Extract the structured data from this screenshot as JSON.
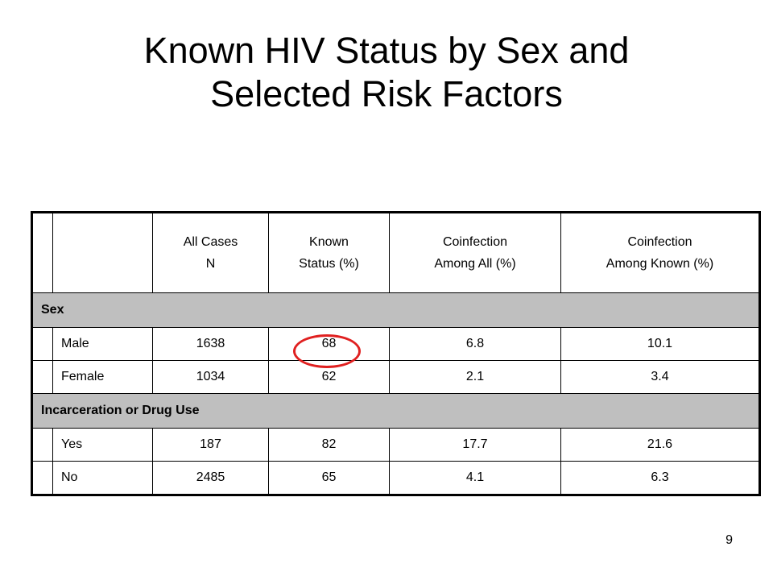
{
  "title": {
    "line1": "Known HIV Status by Sex and",
    "line2": "Selected Risk Factors"
  },
  "table": {
    "headers": {
      "all_cases": {
        "line1": "All Cases",
        "line2": "N"
      },
      "known_status": {
        "line1": "Known",
        "line2": "Status (%)"
      },
      "coinf_all": {
        "line1": "Coinfection",
        "line2": "Among All (%)"
      },
      "coinf_known": {
        "line1": "Coinfection",
        "line2": "Among Known (%)"
      }
    },
    "groups": [
      {
        "label": "Sex",
        "rows": [
          {
            "label": "Male",
            "n": "1638",
            "known": "68",
            "coinf_all": "6.8",
            "coinf_known": "10.1"
          },
          {
            "label": "Female",
            "n": "1034",
            "known": "62",
            "coinf_all": "2.1",
            "coinf_known": "3.4"
          }
        ]
      },
      {
        "label": "Incarceration or Drug Use",
        "rows": [
          {
            "label": "Yes",
            "n": "187",
            "known": "82",
            "coinf_all": "17.7",
            "coinf_known": "21.6"
          },
          {
            "label": "No",
            "n": "2485",
            "known": "65",
            "coinf_all": "4.1",
            "coinf_known": "6.3"
          }
        ]
      }
    ],
    "highlight_color": "#e02020",
    "group_row_color": "#bfbfbf"
  },
  "page_number": "9"
}
